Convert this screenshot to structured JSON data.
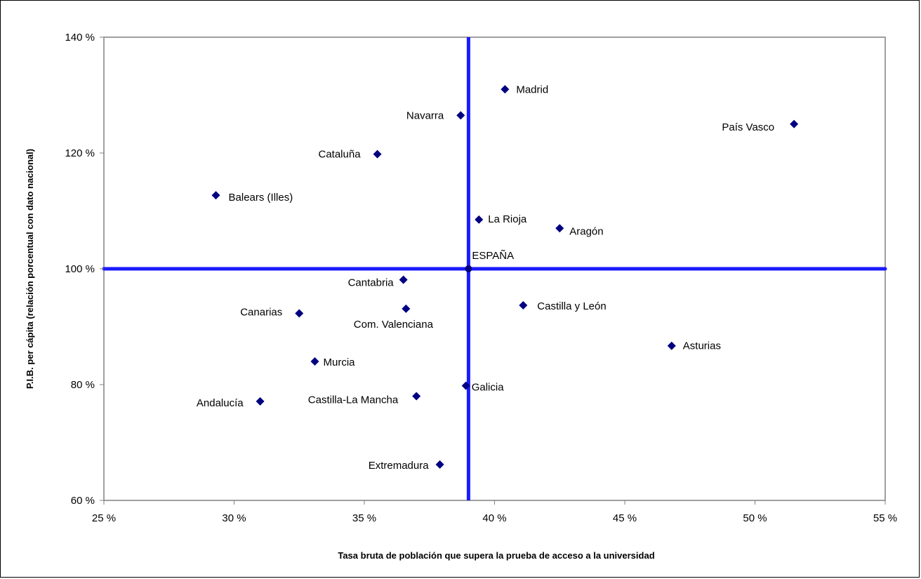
{
  "chart_data": {
    "type": "scatter",
    "xlabel": "Tasa bruta de población que supera la prueba de acceso a la universidad",
    "ylabel": "P.I.B. per cápita (relación porcentual con dato nacional)",
    "xlim": [
      25,
      55
    ],
    "ylim": [
      60,
      140
    ],
    "x_ticks": [
      25,
      30,
      35,
      40,
      45,
      50,
      55
    ],
    "y_ticks": [
      60,
      80,
      100,
      120,
      140
    ],
    "x_tick_labels": [
      "25 %",
      "30 %",
      "35 %",
      "40 %",
      "45 %",
      "50 %",
      "55 %"
    ],
    "y_tick_labels": [
      "60 %",
      "80 %",
      "100 %",
      "120 %",
      "140 %"
    ],
    "reference_lines": {
      "x": 39.0,
      "y": 100
    },
    "grid": false,
    "marker_color": "#000080",
    "reference_line_color": "#1a1aff",
    "points": [
      {
        "label": "Madrid",
        "x": 40.4,
        "y": 131.0
      },
      {
        "label": "Navarra",
        "x": 38.7,
        "y": 126.5
      },
      {
        "label": "País Vasco",
        "x": 51.5,
        "y": 125.0
      },
      {
        "label": "Cataluña",
        "x": 35.5,
        "y": 119.8
      },
      {
        "label": "Balears (Illes)",
        "x": 29.3,
        "y": 112.7
      },
      {
        "label": "La Rioja",
        "x": 39.4,
        "y": 108.5
      },
      {
        "label": "Aragón",
        "x": 42.5,
        "y": 107.0
      },
      {
        "label": "ESPAÑA",
        "x": 39.0,
        "y": 100.0
      },
      {
        "label": "Cantabria",
        "x": 36.5,
        "y": 98.1
      },
      {
        "label": "Castilla y León",
        "x": 41.1,
        "y": 93.7
      },
      {
        "label": "Com. Valenciana",
        "x": 36.6,
        "y": 93.1
      },
      {
        "label": "Canarias",
        "x": 32.5,
        "y": 92.3
      },
      {
        "label": "Asturias",
        "x": 46.8,
        "y": 86.7
      },
      {
        "label": "Murcia",
        "x": 33.1,
        "y": 84.0
      },
      {
        "label": "Galicia",
        "x": 38.9,
        "y": 79.8
      },
      {
        "label": "Castilla-La Mancha",
        "x": 37.0,
        "y": 78.0
      },
      {
        "label": "Andalucía",
        "x": 31.0,
        "y": 77.1
      },
      {
        "label": "Extremadura",
        "x": 37.9,
        "y": 66.2
      }
    ]
  }
}
